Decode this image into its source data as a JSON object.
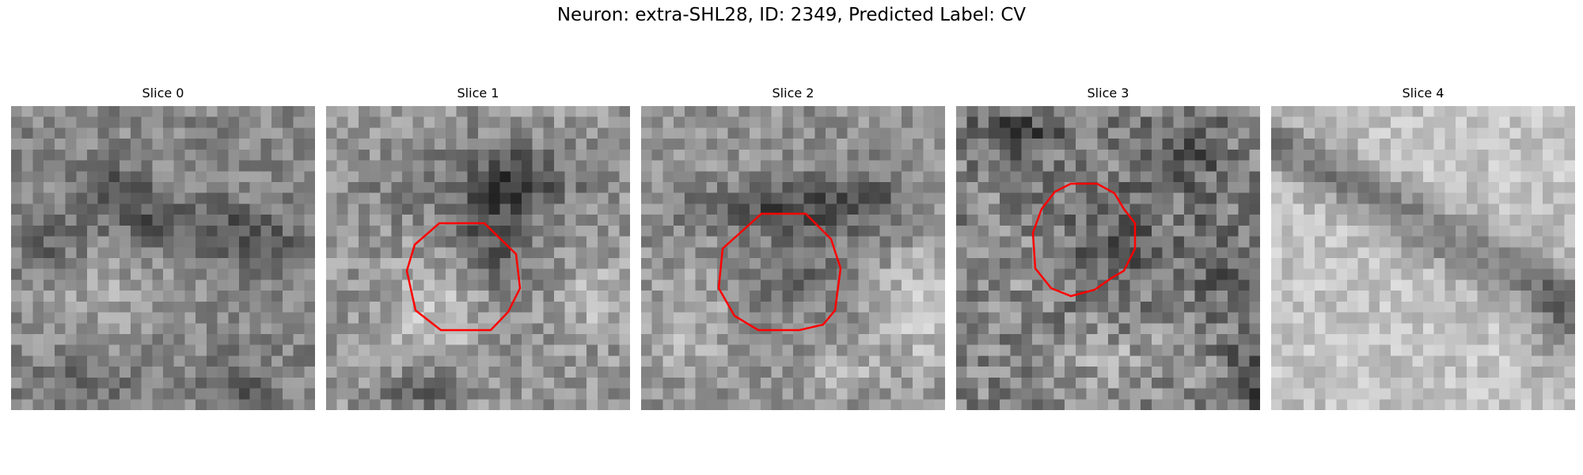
{
  "figure": {
    "title": "Neuron: extra-SHL28, ID: 2349, Predicted Label: CV"
  },
  "colors": {
    "contour": "#ff0000",
    "background": "#ffffff"
  },
  "panels": [
    {
      "title": "Slice 0",
      "has_contour": false
    },
    {
      "title": "Slice 1",
      "has_contour": true
    },
    {
      "title": "Slice 2",
      "has_contour": true
    },
    {
      "title": "Slice 3",
      "has_contour": true
    },
    {
      "title": "Slice 4",
      "has_contour": false
    }
  ]
}
